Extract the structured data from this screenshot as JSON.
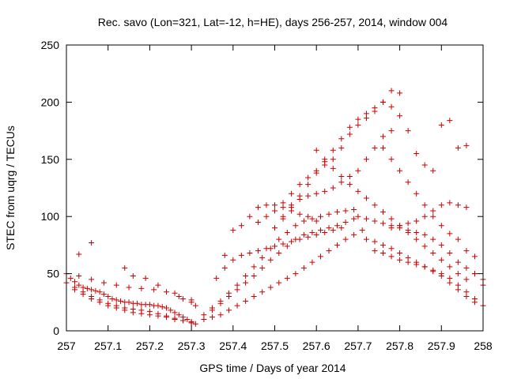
{
  "chart_data": {
    "type": "scatter",
    "title": "Rec. savo (Lon=321, Lat=-12, h=HE), days 256-257, 2014, window 004",
    "xlabel": "GPS time / Days of year 2014",
    "ylabel": "STEC from uqrg / TECUs",
    "xlim": [
      257,
      258
    ],
    "ylim": [
      0,
      250
    ],
    "x_ticks": [
      "257",
      "257.1",
      "257.2",
      "257.3",
      "257.4",
      "257.5",
      "257.6",
      "257.7",
      "257.8",
      "257.9",
      "258"
    ],
    "y_ticks": [
      "0",
      "50",
      "100",
      "150",
      "200",
      "250"
    ],
    "grid": false,
    "legend": "none",
    "marker": "plus",
    "color": "#cc0000",
    "series": [
      {
        "x": [
          257.0,
          257.01,
          257.02,
          257.03,
          257.04,
          257.05,
          257.06,
          257.07,
          257.08,
          257.09,
          257.1,
          257.11,
          257.12,
          257.13,
          257.14,
          257.15,
          257.16,
          257.17,
          257.18,
          257.19,
          257.2,
          257.21,
          257.22,
          257.23,
          257.24,
          257.25,
          257.26,
          257.27,
          257.28,
          257.29,
          257.3
        ],
        "y": [
          50,
          46,
          43,
          40,
          38,
          37,
          36,
          35,
          34,
          32,
          30,
          28,
          27,
          26,
          25,
          25,
          24,
          24,
          23,
          23,
          23,
          22,
          22,
          21,
          20,
          18,
          16,
          14,
          12,
          10,
          8
        ]
      },
      {
        "x": [
          257.0,
          257.02,
          257.04,
          257.06,
          257.08,
          257.1,
          257.12,
          257.14,
          257.16,
          257.18,
          257.2,
          257.22,
          257.24,
          257.26,
          257.28,
          257.3
        ],
        "y": [
          42,
          38,
          34,
          30,
          27,
          24,
          22,
          20,
          19,
          18,
          17,
          15,
          13,
          11,
          9,
          7
        ]
      },
      {
        "x": [
          257.02,
          257.04,
          257.06,
          257.08,
          257.1,
          257.12,
          257.14,
          257.16,
          257.18,
          257.2,
          257.22,
          257.24,
          257.26,
          257.28,
          257.3,
          257.31
        ],
        "y": [
          36,
          32,
          28,
          25,
          22,
          20,
          18,
          16,
          15,
          14,
          13,
          12,
          10,
          9,
          7,
          6
        ]
      },
      {
        "x": [
          257.03,
          257.06,
          257.09,
          257.12,
          257.15,
          257.18,
          257.21,
          257.24,
          257.27,
          257.3
        ],
        "y": [
          48,
          45,
          42,
          40,
          38,
          37,
          36,
          34,
          30,
          27
        ]
      },
      {
        "x": [
          257.03,
          257.06,
          257.14,
          257.16,
          257.19,
          257.22,
          257.26,
          257.28,
          257.3,
          257.31
        ],
        "y": [
          67,
          77,
          55,
          48,
          46,
          40,
          33,
          28,
          25,
          22
        ]
      },
      {
        "x": [
          257.33,
          257.35,
          257.37,
          257.39,
          257.41,
          257.43,
          257.45,
          257.47,
          257.49,
          257.51,
          257.53,
          257.55,
          257.57,
          257.59,
          257.61,
          257.63,
          257.65,
          257.67,
          257.69,
          257.71
        ],
        "y": [
          10,
          12,
          14,
          18,
          22,
          26,
          30,
          34,
          38,
          42,
          46,
          50,
          55,
          60,
          65,
          70,
          75,
          80,
          84,
          88
        ]
      },
      {
        "x": [
          257.33,
          257.35,
          257.37,
          257.39,
          257.41,
          257.43,
          257.45,
          257.47,
          257.49,
          257.51,
          257.53,
          257.55,
          257.57,
          257.59,
          257.61,
          257.63,
          257.65,
          257.67,
          257.69
        ],
        "y": [
          14,
          18,
          24,
          30,
          36,
          42,
          48,
          55,
          62,
          68,
          74,
          80,
          84,
          86,
          88,
          90,
          92,
          95,
          98
        ]
      },
      {
        "x": [
          257.35,
          257.37,
          257.39,
          257.41,
          257.43,
          257.45,
          257.47,
          257.49,
          257.51,
          257.53,
          257.55,
          257.57,
          257.59,
          257.61,
          257.63,
          257.65,
          257.67,
          257.69
        ],
        "y": [
          20,
          26,
          33,
          40,
          48,
          56,
          64,
          72,
          80,
          86,
          92,
          96,
          98,
          100,
          102,
          104,
          105,
          106
        ]
      },
      {
        "x": [
          257.36,
          257.38,
          257.4,
          257.42,
          257.44,
          257.46,
          257.48,
          257.5,
          257.52,
          257.54,
          257.56,
          257.58,
          257.6,
          257.62,
          257.64,
          257.66
        ],
        "y": [
          46,
          55,
          62,
          66,
          68,
          70,
          72,
          74,
          76,
          78,
          80,
          82,
          84,
          86,
          88,
          90
        ]
      },
      {
        "x": [
          257.38,
          257.4,
          257.42,
          257.44,
          257.46,
          257.48,
          257.5,
          257.52,
          257.54,
          257.56,
          257.58,
          257.6
        ],
        "y": [
          66,
          88,
          92,
          100,
          108,
          110,
          110,
          108,
          105,
          102,
          100,
          96
        ]
      },
      {
        "x": [
          257.46,
          257.48,
          257.5,
          257.52,
          257.54,
          257.56,
          257.58,
          257.6,
          257.62,
          257.64,
          257.66,
          257.68,
          257.7,
          257.72,
          257.74,
          257.76,
          257.78
        ],
        "y": [
          95,
          100,
          105,
          112,
          120,
          128,
          134,
          140,
          145,
          150,
          160,
          172,
          180,
          186,
          192,
          200,
          210
        ]
      },
      {
        "x": [
          257.5,
          257.52,
          257.54,
          257.56,
          257.58,
          257.6,
          257.62,
          257.64,
          257.66,
          257.68,
          257.7,
          257.72,
          257.74,
          257.76,
          257.78,
          257.8
        ],
        "y": [
          90,
          98,
          108,
          118,
          128,
          138,
          148,
          158,
          168,
          178,
          185,
          190,
          195,
          200,
          196,
          188
        ]
      },
      {
        "x": [
          257.52,
          257.54,
          257.56,
          257.58,
          257.6,
          257.62,
          257.64,
          257.66,
          257.68,
          257.7,
          257.72,
          257.74,
          257.76,
          257.78
        ],
        "y": [
          100,
          110,
          115,
          118,
          120,
          122,
          125,
          130,
          135,
          140,
          150,
          160,
          170,
          175
        ]
      },
      {
        "x": [
          257.6,
          257.62,
          257.64,
          257.66,
          257.68,
          257.7,
          257.72,
          257.74,
          257.76,
          257.78,
          257.8,
          257.82,
          257.84,
          257.86,
          257.88,
          257.9,
          257.92,
          257.94,
          257.96
        ],
        "y": [
          158,
          150,
          142,
          135,
          128,
          122,
          116,
          110,
          104,
          98,
          92,
          86,
          80,
          74,
          68,
          62,
          56,
          50,
          45
        ]
      },
      {
        "x": [
          257.7,
          257.72,
          257.74,
          257.76,
          257.78,
          257.8,
          257.82,
          257.84,
          257.86,
          257.88,
          257.9,
          257.92,
          257.94,
          257.96,
          257.98,
          258.0
        ],
        "y": [
          100,
          98,
          96,
          94,
          92,
          90,
          88,
          86,
          84,
          80,
          75,
          68,
          60,
          55,
          50,
          45
        ]
      },
      {
        "x": [
          257.72,
          257.74,
          257.76,
          257.78,
          257.8,
          257.82,
          257.84,
          257.86,
          257.88,
          257.9,
          257.92,
          257.94,
          257.96,
          257.98
        ],
        "y": [
          80,
          78,
          75,
          72,
          68,
          64,
          60,
          56,
          52,
          48,
          42,
          36,
          30,
          25
        ]
      },
      {
        "x": [
          257.74,
          257.76,
          257.78,
          257.8,
          257.82,
          257.84,
          257.86,
          257.88,
          257.9,
          257.92,
          257.94,
          257.96,
          257.98,
          258.0
        ],
        "y": [
          70,
          68,
          65,
          62,
          60,
          58,
          56,
          53,
          50,
          46,
          40,
          34,
          28,
          22
        ]
      },
      {
        "x": [
          257.76,
          257.78,
          257.8,
          257.82,
          257.84,
          257.86,
          257.88,
          257.9,
          257.92,
          257.94,
          257.96,
          257.98
        ],
        "y": [
          160,
          150,
          140,
          130,
          120,
          110,
          100,
          92,
          85,
          80,
          70,
          65
        ]
      },
      {
        "x": [
          257.8,
          257.82,
          257.84,
          257.86,
          257.88,
          257.9,
          257.92,
          257.94,
          257.96
        ],
        "y": [
          208,
          175,
          155,
          145,
          140,
          180,
          184,
          160,
          162
        ]
      },
      {
        "x": [
          257.78,
          257.8,
          257.82,
          257.84,
          257.86,
          257.88,
          257.9,
          257.92,
          257.94,
          257.96,
          257.98,
          258.0
        ],
        "y": [
          90,
          92,
          94,
          96,
          100,
          105,
          110,
          112,
          110,
          108,
          50,
          40
        ]
      }
    ]
  }
}
